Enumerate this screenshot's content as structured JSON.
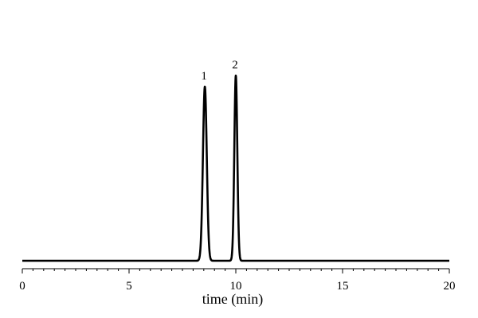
{
  "chart_data": {
    "type": "line",
    "title": "",
    "xlabel": "time (min)",
    "ylabel": "",
    "xlim": [
      0,
      20
    ],
    "ylim": [
      0,
      1.06
    ],
    "x_major_ticks": [
      0,
      5,
      10,
      15,
      20
    ],
    "x_tick_labels": [
      "0",
      "5",
      "10",
      "15",
      "20"
    ],
    "x_minor_step": 0.5,
    "y_axis_visible": false,
    "grid": false,
    "legend": "none",
    "line_color": "#000000",
    "baseline": 0.0,
    "peaks": [
      {
        "label": "1",
        "time": 8.55,
        "height": 0.94,
        "width_sd": 0.09
      },
      {
        "label": "2",
        "time": 10.0,
        "height": 1.0,
        "width_sd": 0.07
      }
    ]
  }
}
